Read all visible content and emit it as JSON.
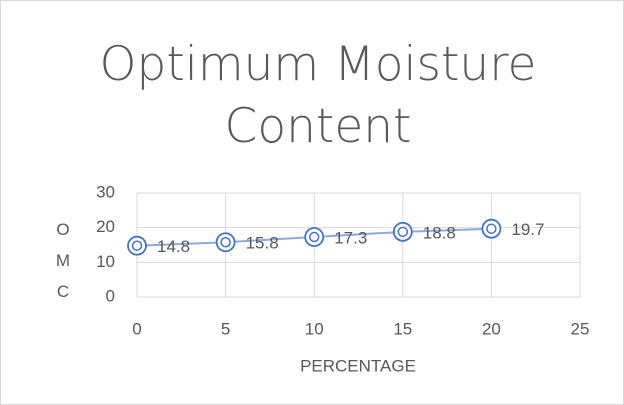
{
  "chart_data": {
    "type": "scatter",
    "title": "Optimum Moisture Content",
    "x_label": "PERCENTAGE",
    "y_label": "OMC",
    "x": [
      0,
      5,
      10,
      15,
      20
    ],
    "series": [
      {
        "values": [
          14.8,
          15.8,
          17.3,
          18.8,
          19.7
        ],
        "color": "#4472c4",
        "line_color": "#8faadc"
      }
    ],
    "xlim": [
      0,
      25
    ],
    "xticks": [
      0,
      5,
      10,
      15,
      20,
      25
    ],
    "ylim": [
      0,
      30
    ],
    "yticks": [
      0,
      10,
      20,
      30
    ],
    "grid": true,
    "data_labels": true
  }
}
